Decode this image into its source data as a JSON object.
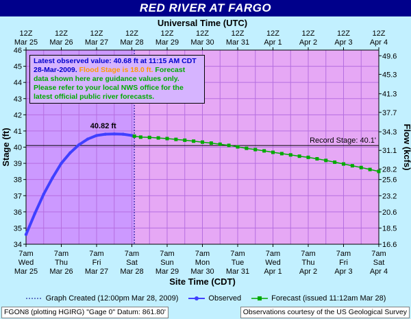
{
  "title": "RED RIVER  AT FARGO",
  "colors": {
    "background": "#c2f0ff",
    "plot_bg": "#cc99ff",
    "plot_right_bg": "#e6a8f5",
    "title_bar": "#00008b",
    "observed": "#4040ff",
    "forecast": "#00aa00",
    "notice_blue": "#0000cc",
    "notice_orange": "#ff9900",
    "notice_green": "#00aa00"
  },
  "chart_data": {
    "type": "line",
    "top_axis": {
      "title": "Universal Time (UTC)",
      "ticks": [
        {
          "x": 0,
          "l1": "12Z",
          "l2": "Mar 25"
        },
        {
          "x": 1,
          "l1": "12Z",
          "l2": "Mar 26"
        },
        {
          "x": 2,
          "l1": "12Z",
          "l2": "Mar 27"
        },
        {
          "x": 3,
          "l1": "12Z",
          "l2": "Mar 28"
        },
        {
          "x": 4,
          "l1": "12Z",
          "l2": "Mar 29"
        },
        {
          "x": 5,
          "l1": "12Z",
          "l2": "Mar 30"
        },
        {
          "x": 6,
          "l1": "12Z",
          "l2": "Mar 31"
        },
        {
          "x": 7,
          "l1": "12Z",
          "l2": "Apr 1"
        },
        {
          "x": 8,
          "l1": "12Z",
          "l2": "Apr 2"
        },
        {
          "x": 9,
          "l1": "12Z",
          "l2": "Apr 3"
        },
        {
          "x": 10,
          "l1": "12Z",
          "l2": "Apr 4"
        }
      ]
    },
    "bottom_axis": {
      "title": "Site Time (CDT)",
      "ticks": [
        {
          "x": 0,
          "l1": "7am",
          "l2": "Wed",
          "l3": "Mar 25"
        },
        {
          "x": 1,
          "l1": "7am",
          "l2": "Thu",
          "l3": "Mar 26"
        },
        {
          "x": 2,
          "l1": "7am",
          "l2": "Fri",
          "l3": "Mar 27"
        },
        {
          "x": 3,
          "l1": "7am",
          "l2": "Sat",
          "l3": "Mar 28"
        },
        {
          "x": 4,
          "l1": "7am",
          "l2": "Sun",
          "l3": "Mar 29"
        },
        {
          "x": 5,
          "l1": "7am",
          "l2": "Mon",
          "l3": "Mar 30"
        },
        {
          "x": 6,
          "l1": "7am",
          "l2": "Tue",
          "l3": "Mar 31"
        },
        {
          "x": 7,
          "l1": "7am",
          "l2": "Wed",
          "l3": "Apr 1"
        },
        {
          "x": 8,
          "l1": "7am",
          "l2": "Thu",
          "l3": "Apr 2"
        },
        {
          "x": 9,
          "l1": "7am",
          "l2": "Fri",
          "l3": "Apr 3"
        },
        {
          "x": 10,
          "l1": "7am",
          "l2": "Sat",
          "l3": "Apr 4"
        }
      ]
    },
    "xlim": [
      0,
      10
    ],
    "ylabel": "Stage (ft)",
    "ylim": [
      34,
      46
    ],
    "y_ticks": [
      34,
      35,
      36,
      37,
      38,
      39,
      40,
      41,
      42,
      43,
      44,
      45,
      46
    ],
    "y2label": "Flow (kcfs)",
    "y2_ticks": [
      {
        "stage": 34.0,
        "label": "16.6"
      },
      {
        "stage": 35.0,
        "label": "18.5"
      },
      {
        "stage": 36.0,
        "label": "20.6"
      },
      {
        "stage": 37.0,
        "label": "23.2"
      },
      {
        "stage": 38.0,
        "label": "25.6"
      },
      {
        "stage": 38.65,
        "label": "28.2"
      },
      {
        "stage": 39.8,
        "label": "31.1"
      },
      {
        "stage": 40.95,
        "label": "34.3"
      },
      {
        "stage": 42.15,
        "label": "37.7"
      },
      {
        "stage": 43.3,
        "label": "41.3"
      },
      {
        "stage": 44.5,
        "label": "45.3"
      },
      {
        "stage": 45.65,
        "label": "49.6"
      }
    ],
    "series": [
      {
        "name": "Observed",
        "x": [
          0,
          0.25,
          0.5,
          0.75,
          1.0,
          1.25,
          1.5,
          1.75,
          2.0,
          2.25,
          2.5,
          2.75,
          3.0,
          3.07
        ],
        "y": [
          34.6,
          35.9,
          37.1,
          38.1,
          39.0,
          39.65,
          40.15,
          40.5,
          40.72,
          40.8,
          40.82,
          40.8,
          40.72,
          40.68
        ]
      },
      {
        "name": "Forecast (issued 11:12am Mar 28)",
        "x": [
          3.07,
          3.25,
          3.5,
          3.75,
          4.0,
          4.25,
          4.5,
          4.75,
          5.0,
          5.25,
          5.5,
          5.75,
          6.0,
          6.25,
          6.5,
          6.75,
          7.0,
          7.25,
          7.5,
          7.75,
          8.0,
          8.25,
          8.5,
          8.75,
          9.0,
          9.25,
          9.5,
          9.75,
          10.0
        ],
        "y": [
          40.68,
          40.62,
          40.6,
          40.57,
          40.53,
          40.48,
          40.43,
          40.37,
          40.31,
          40.25,
          40.18,
          40.11,
          40.02,
          39.93,
          39.85,
          39.77,
          39.68,
          39.6,
          39.52,
          39.44,
          39.37,
          39.28,
          39.18,
          39.07,
          38.96,
          38.85,
          38.74,
          38.62,
          38.5
        ]
      }
    ],
    "record_stage": {
      "y": 40.1,
      "label": "Record Stage: 40.1'"
    },
    "created_marker_x": 3.07,
    "peak_annotation": {
      "x": 2.5,
      "y": 40.82,
      "label": "40.82 ft"
    }
  },
  "notice": {
    "part1": "Latest observed value: 40.68 ft at 11:15 AM CDT 28-Mar-2009.",
    "part2": "Flood Stage is 18.0 ft.",
    "part3": "Forecast data shown here are guidance values only. Please refer to your local NWS office for the latest official public river forecasts."
  },
  "legend": {
    "created": "Graph Created (12:00pm Mar 28, 2009)",
    "observed": "Observed",
    "forecast": "Forecast (issued 11:12am Mar 28)"
  },
  "footer": {
    "left": "FGON8 (plotting HGIRG)  \"Gage 0\" Datum: 861.80'",
    "right": "Observations courtesy of the  US Geological Survey"
  }
}
